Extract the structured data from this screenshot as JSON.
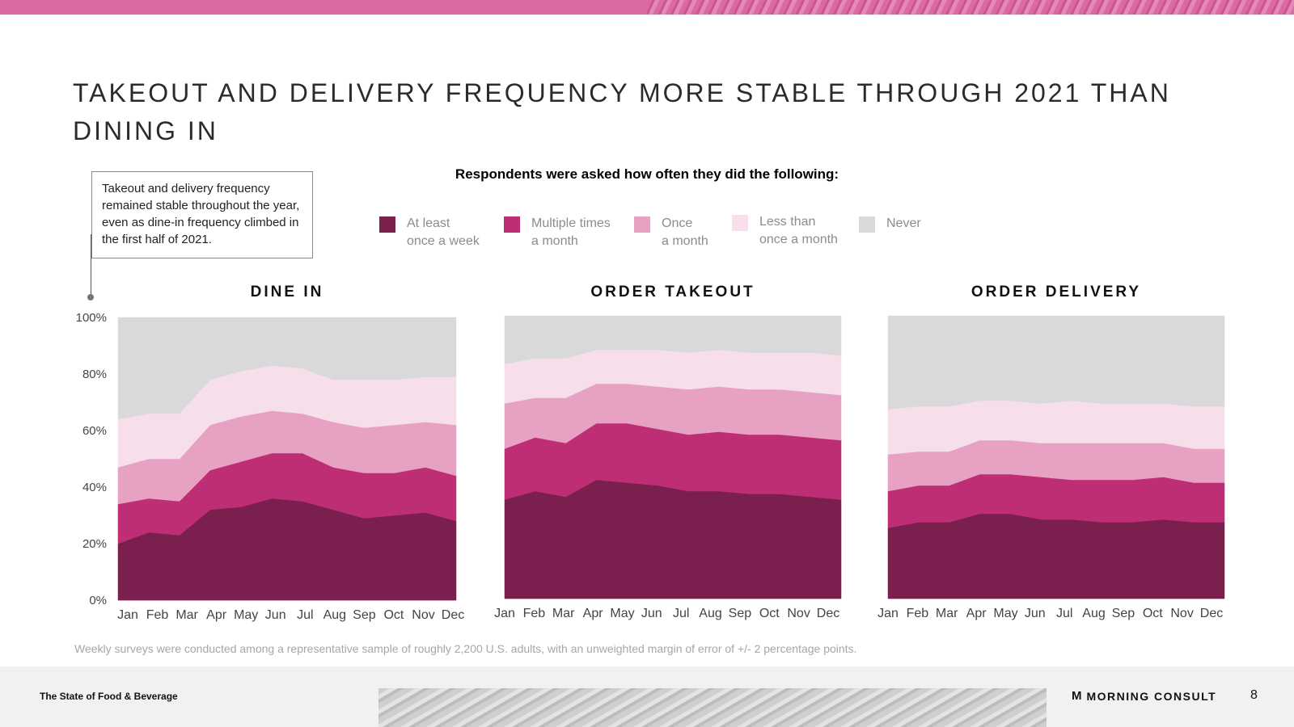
{
  "title": "TAKEOUT AND DELIVERY FREQUENCY MORE STABLE THROUGH 2021 THAN DINING IN",
  "callout": "Takeout and delivery frequency remained stable throughout the year, even as dine-in frequency climbed in the first half of 2021.",
  "legend_title": "Respondents were asked how often they did the following:",
  "legend": [
    {
      "label": "At least\nonce a week",
      "color": "#7b1f4e"
    },
    {
      "label": "Multiple times\na month",
      "color": "#be2e75"
    },
    {
      "label": "Once\na month",
      "color": "#e6a1c3"
    },
    {
      "label": "Less than\nonce a month",
      "color": "#f6dfea"
    },
    {
      "label": "Never",
      "color": "#d9d9d9"
    }
  ],
  "footnote": "Weekly surveys were conducted among a representative sample of roughly 2,200 U.S. adults, with an unweighted margin of error of +/- 2 percentage points.",
  "footer": {
    "report_name": "The State of Food & Beverage",
    "brand_icon": "M",
    "brand_name": "MORNING CONSULT",
    "page_number": "8"
  },
  "chart_data": [
    {
      "type": "area",
      "title": "DINE IN",
      "categories": [
        "Jan",
        "Feb",
        "Mar",
        "Apr",
        "May",
        "Jun",
        "Jul",
        "Aug",
        "Sep",
        "Oct",
        "Nov",
        "Dec"
      ],
      "y_ticks": [
        "0%",
        "20%",
        "40%",
        "60%",
        "80%",
        "100%"
      ],
      "ylim": [
        0,
        100
      ],
      "stacked": true,
      "series": [
        {
          "name": "At least once a week",
          "values": [
            20,
            24,
            23,
            32,
            33,
            36,
            35,
            32,
            29,
            30,
            31,
            28
          ]
        },
        {
          "name": "Multiple times a month",
          "values": [
            14,
            12,
            12,
            14,
            16,
            16,
            17,
            15,
            16,
            15,
            16,
            16
          ]
        },
        {
          "name": "Once a month",
          "values": [
            13,
            14,
            15,
            16,
            16,
            15,
            14,
            16,
            16,
            17,
            16,
            18
          ]
        },
        {
          "name": "Less than once a month",
          "values": [
            17,
            16,
            16,
            16,
            16,
            16,
            16,
            15,
            17,
            16,
            16,
            17
          ]
        },
        {
          "name": "Never",
          "values": [
            36,
            34,
            34,
            22,
            19,
            17,
            18,
            22,
            22,
            22,
            21,
            21
          ]
        }
      ]
    },
    {
      "type": "area",
      "title": "ORDER TAKEOUT",
      "categories": [
        "Jan",
        "Feb",
        "Mar",
        "Apr",
        "May",
        "Jun",
        "Jul",
        "Aug",
        "Sep",
        "Oct",
        "Nov",
        "Dec"
      ],
      "ylim": [
        0,
        100
      ],
      "stacked": true,
      "series": [
        {
          "name": "At least once a week",
          "values": [
            35,
            38,
            36,
            42,
            41,
            40,
            38,
            38,
            37,
            37,
            36,
            35
          ]
        },
        {
          "name": "Multiple times a month",
          "values": [
            18,
            19,
            19,
            20,
            21,
            20,
            20,
            21,
            21,
            21,
            21,
            21
          ]
        },
        {
          "name": "Once a month",
          "values": [
            16,
            14,
            16,
            14,
            14,
            15,
            16,
            16,
            16,
            16,
            16,
            16
          ]
        },
        {
          "name": "Less than once a month",
          "values": [
            14,
            14,
            14,
            12,
            12,
            13,
            13,
            13,
            13,
            13,
            14,
            14
          ]
        },
        {
          "name": "Never",
          "values": [
            17,
            15,
            15,
            12,
            12,
            12,
            13,
            12,
            13,
            13,
            13,
            14
          ]
        }
      ]
    },
    {
      "type": "area",
      "title": "ORDER DELIVERY",
      "categories": [
        "Jan",
        "Feb",
        "Mar",
        "Apr",
        "May",
        "Jun",
        "Jul",
        "Aug",
        "Sep",
        "Oct",
        "Nov",
        "Dec"
      ],
      "ylim": [
        0,
        100
      ],
      "stacked": true,
      "series": [
        {
          "name": "At least once a week",
          "values": [
            25,
            27,
            27,
            30,
            30,
            28,
            28,
            27,
            27,
            28,
            27,
            27
          ]
        },
        {
          "name": "Multiple times a month",
          "values": [
            13,
            13,
            13,
            14,
            14,
            15,
            14,
            15,
            15,
            15,
            14,
            14
          ]
        },
        {
          "name": "Once a month",
          "values": [
            13,
            12,
            12,
            12,
            12,
            12,
            13,
            13,
            13,
            12,
            12,
            12
          ]
        },
        {
          "name": "Less than once a month",
          "values": [
            16,
            16,
            16,
            14,
            14,
            14,
            15,
            14,
            14,
            14,
            15,
            15
          ]
        },
        {
          "name": "Never",
          "values": [
            33,
            32,
            32,
            30,
            30,
            31,
            30,
            31,
            31,
            31,
            32,
            32
          ]
        }
      ]
    }
  ]
}
